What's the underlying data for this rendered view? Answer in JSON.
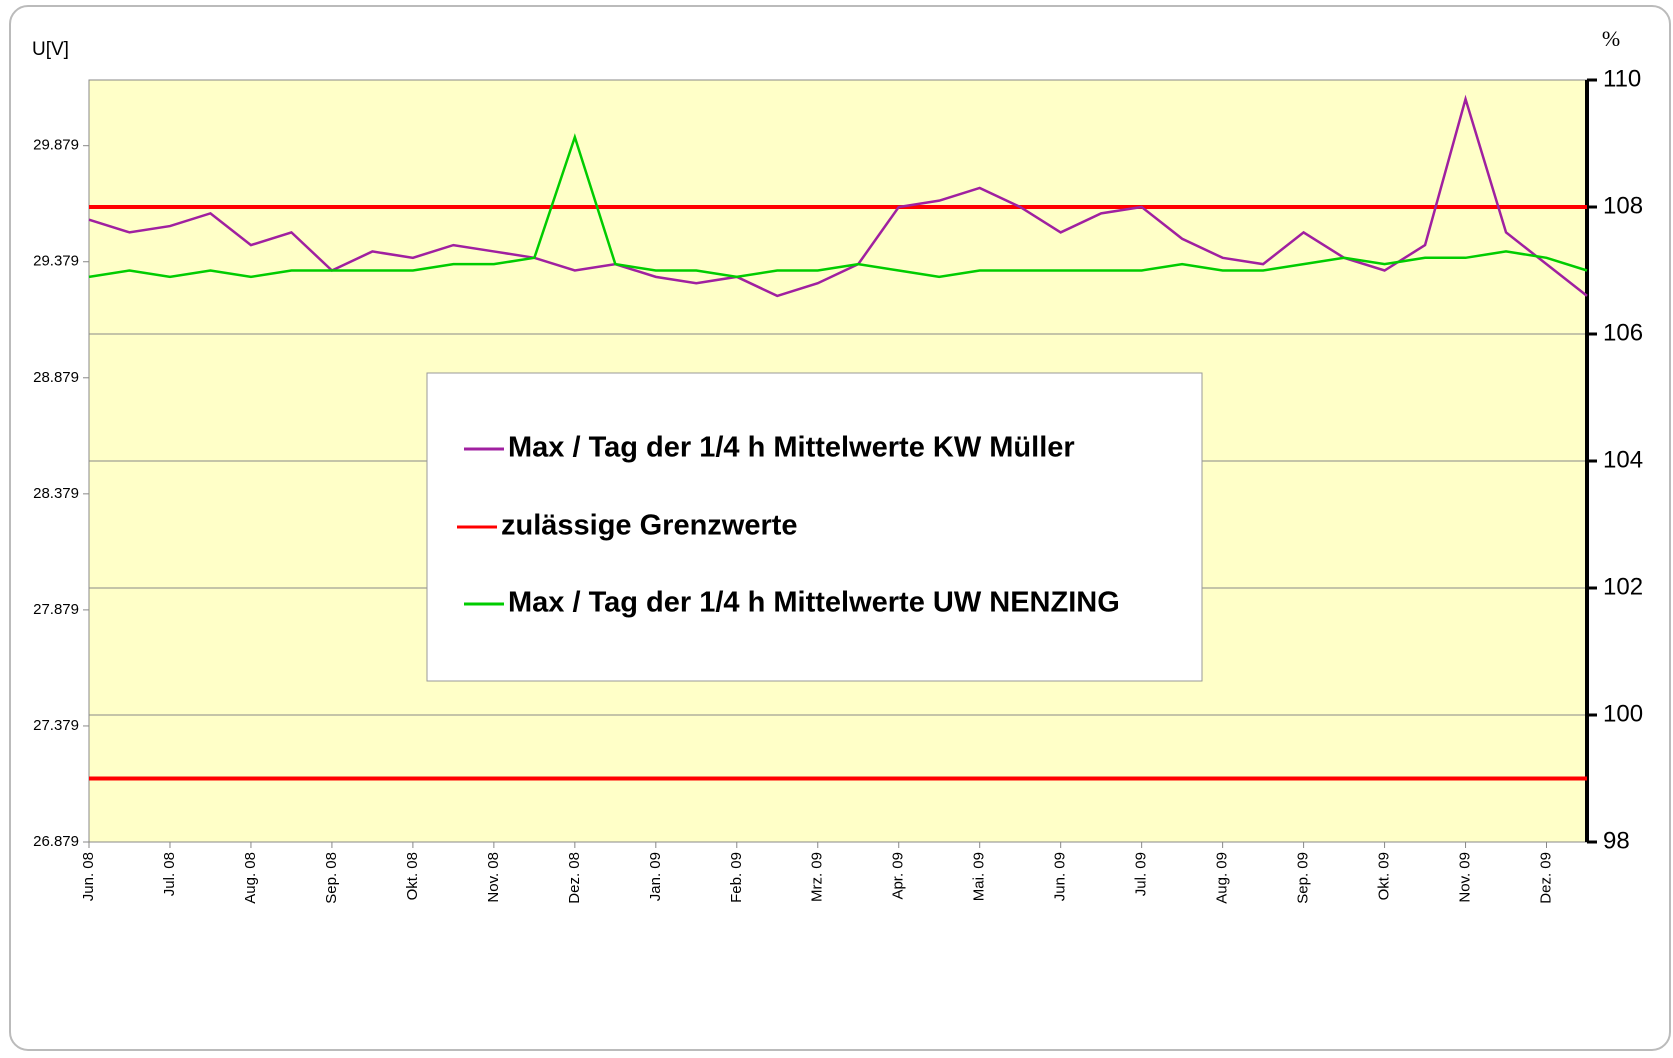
{
  "chart_data": {
    "type": "line",
    "y_label": "U[V]",
    "y2_label": "%",
    "categories": [
      "Jun. 08",
      null,
      "Jul. 08",
      null,
      "Aug. 08",
      null,
      "Sep. 08",
      null,
      "Okt. 08",
      null,
      "Nov. 08",
      null,
      "Dez. 08",
      null,
      "Jan. 09",
      null,
      "Feb. 09",
      null,
      "Mrz. 09",
      null,
      "Apr. 09",
      null,
      "Mai. 09",
      null,
      "Jun. 09",
      null,
      "Jul. 09",
      null,
      "Aug. 09",
      null,
      "Sep. 09",
      null,
      "Okt. 09",
      null,
      "Nov. 09",
      null,
      "Dez. 09",
      null
    ],
    "series": [
      {
        "name": "Max / Tag der 1/4 h Mittelwerte KW Müller",
        "color": "#a020a0",
        "axis": "y2",
        "values": [
          107.8,
          107.6,
          107.7,
          107.9,
          107.4,
          107.6,
          107.0,
          107.3,
          107.2,
          107.4,
          107.3,
          107.2,
          107.0,
          107.1,
          106.9,
          106.8,
          106.9,
          106.6,
          106.8,
          107.1,
          108.0,
          108.1,
          108.3,
          108.0,
          107.6,
          107.9,
          108.0,
          107.5,
          107.2,
          107.1,
          107.6,
          107.2,
          107.0,
          107.4,
          109.7,
          107.6,
          107.1,
          106.6
        ]
      },
      {
        "name": "Max / Tag der 1/4 h Mittelwerte UW NENZING",
        "color": "#00cc00",
        "axis": "y2",
        "values": [
          106.9,
          107.0,
          106.9,
          107.0,
          106.9,
          107.0,
          107.0,
          107.0,
          107.0,
          107.1,
          107.1,
          107.2,
          109.1,
          107.1,
          107.0,
          107.0,
          106.9,
          107.0,
          107.0,
          107.1,
          107.0,
          106.9,
          107.0,
          107.0,
          107.0,
          107.0,
          107.0,
          107.1,
          107.0,
          107.0,
          107.1,
          107.2,
          107.1,
          107.2,
          107.2,
          107.3,
          107.2,
          107.0
        ]
      }
    ],
    "limit_lines": {
      "name": "zulässige Grenzwerte",
      "color": "#ff0000",
      "axis": "y2",
      "values": [
        108,
        99
      ]
    },
    "ylim": [
      26.879,
      30.162
    ],
    "yticks": [
      26.879,
      27.379,
      27.879,
      28.379,
      28.879,
      29.379,
      29.879
    ],
    "y2lim": [
      98,
      110
    ],
    "y2ticks": [
      98,
      100,
      102,
      104,
      106,
      108,
      110
    ],
    "grid": true,
    "background": "#ffffc8"
  }
}
